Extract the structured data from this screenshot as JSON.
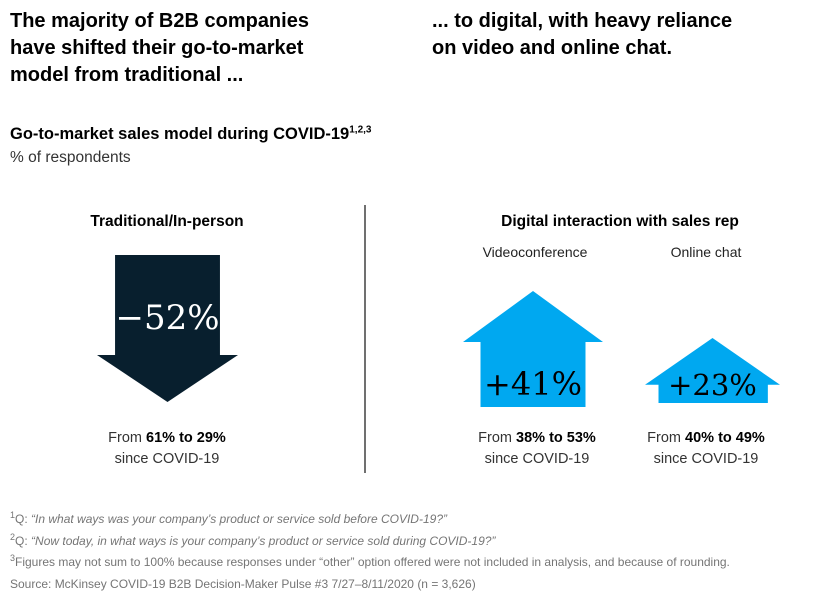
{
  "headlines": {
    "left": "The majority of B2B companies\nhave shifted their go-to-market\nmodel from traditional ...",
    "right": "... to digital, with heavy reliance\non video and online chat."
  },
  "chart": {
    "title": "Go-to-market sales model during COVID-19",
    "title_superscript": "1,2,3",
    "unit_label": "% of respondents",
    "left_section": {
      "header": "Traditional/In-person",
      "arrow": {
        "direction": "down",
        "value": "−52%"
      },
      "caption": {
        "prefix": "From",
        "range": "61% to 29%",
        "suffix": "since COVID-19"
      }
    },
    "right_section": {
      "header": "Digital interaction with sales rep",
      "items": [
        {
          "label": "Videoconference",
          "arrow": {
            "direction": "up",
            "value": "+41%"
          },
          "caption": {
            "prefix": "From",
            "range": "38% to 53%",
            "suffix": "since COVID-19"
          }
        },
        {
          "label": "Online chat",
          "arrow": {
            "direction": "up",
            "value": "+23%"
          },
          "caption": {
            "prefix": "From",
            "range": "40% to 49%",
            "suffix": "since COVID-19"
          }
        }
      ]
    }
  },
  "chart_data": {
    "type": "bar",
    "title": "Go-to-market sales model during COVID-19",
    "subtitle": "% of respondents",
    "categories": [
      "Traditional/In-person",
      "Digital: Videoconference",
      "Digital: Online chat"
    ],
    "series": [
      {
        "name": "Change since COVID-19 (%)",
        "values": [
          -52,
          41,
          23
        ]
      },
      {
        "name": "Before COVID-19 (% of respondents)",
        "values": [
          61,
          38,
          40
        ]
      },
      {
        "name": "During COVID-19 (% of respondents)",
        "values": [
          29,
          53,
          49
        ]
      }
    ],
    "annotations": [
      "−52% — From 61% to 29% since COVID-19",
      "+41% — From 38% to 53% since COVID-19",
      "+23% — From 40% to 49% since COVID-19"
    ],
    "legend_position": "none",
    "grid": false
  },
  "colors": {
    "decline_arrow": "#081f2e",
    "growth_arrow": "#00a8f0",
    "decline_value_text": "#ffffff",
    "growth_value_text": "#000000",
    "footnote_gray": "#757575",
    "divider_gray": "#707070"
  },
  "footnotes": [
    {
      "marker": "1",
      "label": "Q: ",
      "quote": "“In what ways was your company’s product or service sold before COVID-19?”"
    },
    {
      "marker": "2",
      "label": "Q: ",
      "quote": "“Now today, in what ways is your company’s product or service sold during COVID-19?”"
    },
    {
      "marker": "3",
      "label": "Figures may not sum to 100% because responses under “other” option offered were not included in analysis, and because of rounding.",
      "quote": ""
    }
  ],
  "source": "Source: McKinsey COVID-19 B2B Decision-Maker Pulse #3 7/27–8/11/2020 (n = 3,626)"
}
